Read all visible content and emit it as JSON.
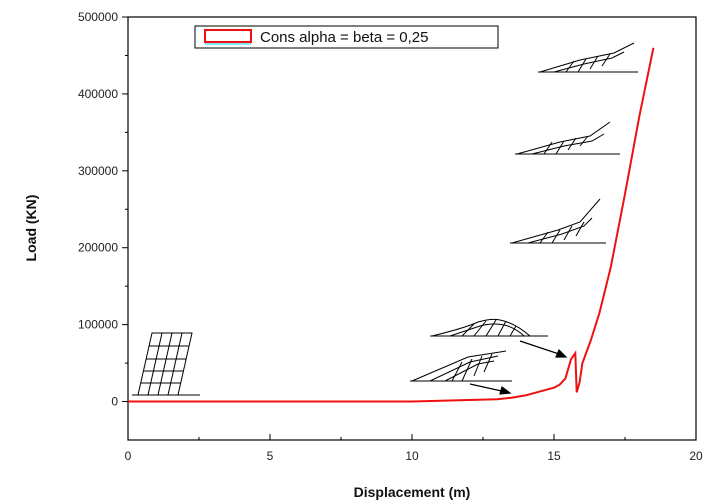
{
  "chart_data": {
    "type": "line",
    "title": "",
    "xlabel": "Displacement (m)",
    "ylabel": "Load (KN)",
    "xlim": [
      0,
      20
    ],
    "ylim": [
      -50000,
      500000
    ],
    "xticks": [
      0,
      5,
      10,
      15,
      20
    ],
    "xtick_labels": [
      "0",
      "5",
      "10",
      "15",
      "20"
    ],
    "yticks": [
      0,
      100000,
      200000,
      300000,
      400000,
      500000
    ],
    "ytick_labels": [
      "0",
      "100000",
      "200000",
      "300000",
      "400000",
      "500000"
    ],
    "grid": false,
    "legend_position": "top-center",
    "series": [
      {
        "name": "Cons alpha = beta = 0,25",
        "color": "#ee1111",
        "x": [
          0,
          2,
          4,
          6,
          8,
          10,
          12,
          13.0,
          13.5,
          14.0,
          14.4,
          14.8,
          15.0,
          15.2,
          15.4,
          15.6,
          15.75,
          15.8,
          15.9,
          16.0,
          16.3,
          16.6,
          17.0,
          17.5,
          18.0,
          18.5
        ],
        "y": [
          0,
          0,
          0,
          0,
          0,
          0,
          2000,
          3000,
          5000,
          8000,
          12000,
          16000,
          18000,
          22000,
          30000,
          55000,
          63000,
          12000,
          25000,
          50000,
          80000,
          115000,
          175000,
          270000,
          370000,
          460000
        ]
      }
    ]
  }
}
